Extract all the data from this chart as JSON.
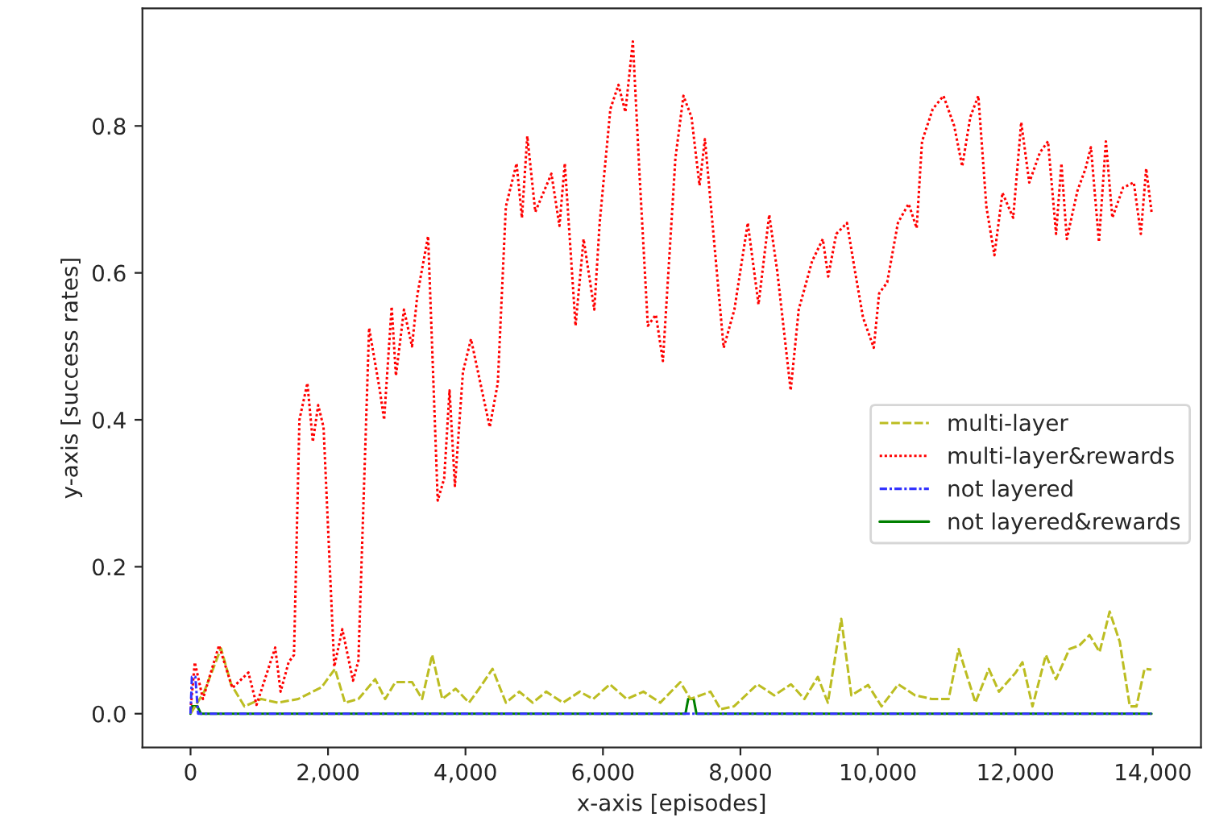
{
  "chart_data": {
    "type": "line",
    "xlabel": "x-axis [episodes]",
    "ylabel": "y-axis [success rates]",
    "xlim": [
      -700,
      14700
    ],
    "ylim": [
      -0.046,
      0.96
    ],
    "xticks": [
      0,
      {
        "value": 2000,
        "label": "2,000"
      },
      {
        "value": 4000,
        "label": "4,000"
      },
      {
        "value": 6000,
        "label": "6,000"
      },
      {
        "value": 8000,
        "label": "8,000"
      },
      {
        "value": 10000,
        "label": "10,000"
      },
      {
        "value": 12000,
        "label": "12,000"
      },
      {
        "value": 14000,
        "label": "14,000"
      }
    ],
    "yticks": [
      {
        "value": 0,
        "label": "0.0"
      },
      {
        "value": 0.2,
        "label": "0.2"
      },
      {
        "value": 0.4,
        "label": "0.4"
      },
      {
        "value": 0.6,
        "label": "0.6"
      },
      {
        "value": 0.8,
        "label": "0.8"
      }
    ],
    "grid": false,
    "legend": "center right",
    "marker": "none",
    "series": [
      {
        "name": "multi-layer",
        "color": "#bcbd22",
        "line_style": "dashed",
        "x": [
          0,
          199,
          443,
          590,
          784,
          1028,
          1272,
          1565,
          1906,
          2101,
          2247,
          2442,
          2686,
          2832,
          2979,
          3223,
          3369,
          3515,
          3662,
          3857,
          4052,
          4198,
          4393,
          4588,
          4783,
          4978,
          5174,
          5418,
          5662,
          5857,
          6101,
          6345,
          6589,
          6833,
          7126,
          7272,
          7565,
          7711,
          7906,
          8247,
          8491,
          8736,
          8931,
          9126,
          9272,
          9467,
          9614,
          9858,
          10053,
          10297,
          10541,
          10785,
          11029,
          11175,
          11419,
          11614,
          11761,
          12005,
          12103,
          12249,
          12444,
          12591,
          12786,
          12932,
          13079,
          13225,
          13372,
          13518,
          13665,
          13762,
          13879,
          13980
        ],
        "values": [
          0,
          0.03,
          0.089,
          0.04,
          0.01,
          0.02,
          0.015,
          0.02,
          0.036,
          0.061,
          0.015,
          0.02,
          0.047,
          0.02,
          0.043,
          0.043,
          0.02,
          0.08,
          0.02,
          0.034,
          0.015,
          0.034,
          0.061,
          0.015,
          0.03,
          0.015,
          0.03,
          0.015,
          0.03,
          0.02,
          0.04,
          0.02,
          0.03,
          0.015,
          0.043,
          0.02,
          0.03,
          0.006,
          0.01,
          0.04,
          0.025,
          0.04,
          0.02,
          0.05,
          0.015,
          0.129,
          0.025,
          0.039,
          0.01,
          0.04,
          0.025,
          0.02,
          0.02,
          0.088,
          0.015,
          0.061,
          0.03,
          0.056,
          0.07,
          0.01,
          0.08,
          0.047,
          0.088,
          0.093,
          0.107,
          0.084,
          0.139,
          0.098,
          0.01,
          0.01,
          0.061,
          0.06
        ]
      },
      {
        "name": "multi-layer&rewards",
        "color": "#ff0000",
        "line_style": "dotted",
        "x": [
          0,
          62,
          180,
          414,
          608,
          842,
          960,
          1232,
          1310,
          1427,
          1505,
          1584,
          1700,
          1779,
          1857,
          1935,
          2091,
          2208,
          2364,
          2442,
          2598,
          2754,
          2816,
          2926,
          2988,
          3105,
          3222,
          3300,
          3456,
          3596,
          3690,
          3768,
          3846,
          3963,
          4080,
          4353,
          4470,
          4587,
          4743,
          4821,
          4899,
          5016,
          5250,
          5367,
          5445,
          5601,
          5718,
          5874,
          5952,
          6108,
          6225,
          6326,
          6435,
          6536,
          6653,
          6770,
          6872,
          7054,
          7171,
          7288,
          7405,
          7483,
          7639,
          7756,
          7912,
          8107,
          8263,
          8419,
          8536,
          8731,
          8848,
          9043,
          9199,
          9277,
          9394,
          9550,
          9667,
          9784,
          9940,
          10018,
          10135,
          10291,
          10447,
          10564,
          10642,
          10798,
          10954,
          11110,
          11227,
          11344,
          11461,
          11578,
          11695,
          11812,
          11968,
          12085,
          12202,
          12358,
          12475,
          12592,
          12670,
          12748,
          12904,
          13021,
          13099,
          13216,
          13317,
          13411,
          13567,
          13723,
          13825,
          13903,
          13981
        ],
        "values": [
          0.005,
          0.07,
          0.02,
          0.093,
          0.035,
          0.056,
          0.012,
          0.09,
          0.03,
          0.07,
          0.08,
          0.4,
          0.45,
          0.37,
          0.42,
          0.39,
          0.064,
          0.115,
          0.045,
          0.072,
          0.525,
          0.44,
          0.4,
          0.554,
          0.46,
          0.55,
          0.5,
          0.57,
          0.65,
          0.29,
          0.32,
          0.44,
          0.31,
          0.465,
          0.51,
          0.39,
          0.45,
          0.69,
          0.749,
          0.675,
          0.786,
          0.683,
          0.735,
          0.664,
          0.749,
          0.528,
          0.646,
          0.55,
          0.668,
          0.823,
          0.856,
          0.819,
          0.915,
          0.727,
          0.528,
          0.543,
          0.48,
          0.756,
          0.841,
          0.812,
          0.719,
          0.782,
          0.62,
          0.498,
          0.55,
          0.668,
          0.557,
          0.679,
          0.602,
          0.44,
          0.55,
          0.616,
          0.646,
          0.595,
          0.653,
          0.668,
          0.602,
          0.539,
          0.498,
          0.572,
          0.587,
          0.668,
          0.694,
          0.661,
          0.779,
          0.823,
          0.841,
          0.8,
          0.745,
          0.812,
          0.841,
          0.69,
          0.624,
          0.709,
          0.675,
          0.805,
          0.723,
          0.764,
          0.779,
          0.653,
          0.749,
          0.646,
          0.712,
          0.742,
          0.771,
          0.642,
          0.779,
          0.675,
          0.716,
          0.723,
          0.653,
          0.742,
          0.683
        ]
      },
      {
        "name": "not layered",
        "color": "#3333ff",
        "line_style": "dashdot",
        "x": [
          0,
          20,
          70,
          110,
          13980
        ],
        "values": [
          0,
          0.05,
          0.05,
          0,
          0
        ]
      },
      {
        "name": "not layered&rewards",
        "color": "#008000",
        "line_style": "solid",
        "x": [
          0,
          20,
          100,
          150,
          7200,
          7240,
          7320,
          7360,
          13980
        ],
        "values": [
          0,
          0.01,
          0.01,
          0,
          0,
          0.02,
          0.02,
          0,
          0
        ]
      }
    ]
  }
}
